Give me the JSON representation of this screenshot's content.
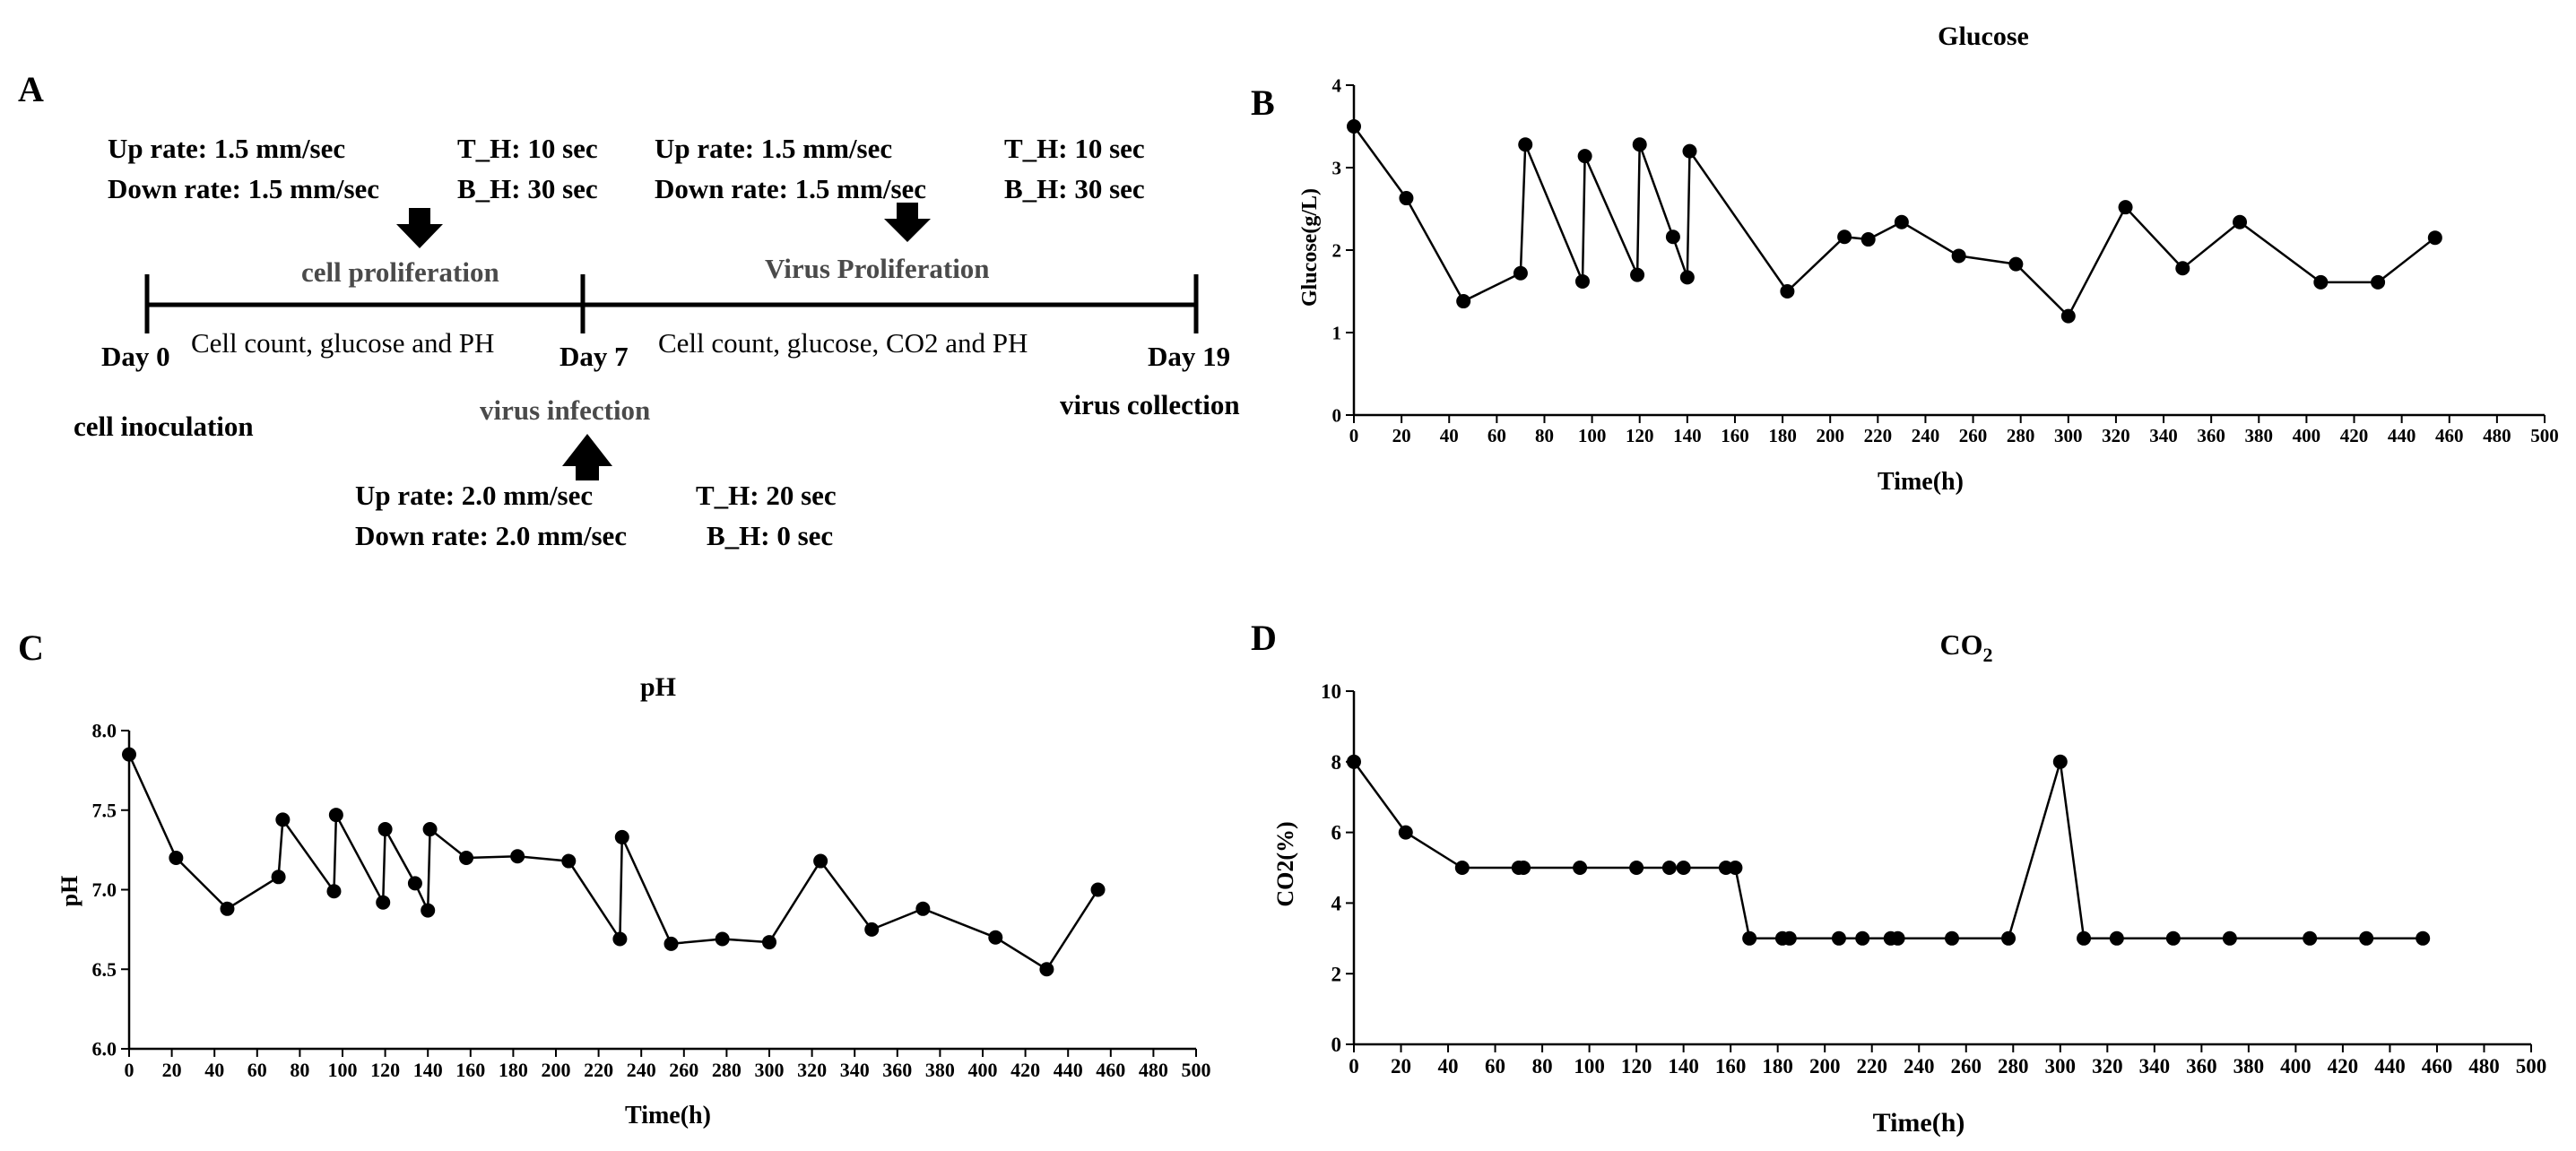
{
  "panel_letters": {
    "a": "A",
    "b": "B",
    "c": "C",
    "d": "D"
  },
  "timeline": {
    "settings_cell": {
      "up": "Up rate: 1.5 mm/sec",
      "down": "Down rate: 1.5 mm/sec",
      "th": "T_H: 10 sec",
      "bh": "B_H: 30 sec"
    },
    "settings_virus": {
      "up": "Up rate: 1.5 mm/sec",
      "down": "Down rate: 1.5 mm/sec",
      "th": "T_H: 10 sec",
      "bh": "B_H: 30 sec"
    },
    "settings_infection": {
      "up": "Up rate: 2.0 mm/sec",
      "down": "Down rate: 2.0 mm/sec",
      "th": "T_H: 20 sec",
      "bh": "B_H: 0 sec"
    },
    "phase_cell": "cell proliferation",
    "phase_virus": "Virus Proliferation",
    "day0": "Day 0",
    "day7": "Day 7",
    "day19": "Day 19",
    "measure_cell": "Cell count, glucose and PH",
    "measure_virus": "Cell count, glucose, CO2 and PH",
    "event_inoculation": "cell inoculation",
    "event_infection": "virus infection",
    "event_collection": "virus collection"
  },
  "chart_data": [
    {
      "id": "glucose",
      "type": "line",
      "title": "Glucose",
      "xlabel": "Time(h)",
      "ylabel": "Glucose(g/L)",
      "xlim": [
        0,
        500
      ],
      "ylim": [
        0,
        4
      ],
      "xticks": [
        0,
        20,
        40,
        60,
        80,
        100,
        120,
        140,
        160,
        180,
        200,
        220,
        240,
        260,
        280,
        300,
        320,
        340,
        360,
        380,
        400,
        420,
        440,
        460,
        480,
        500
      ],
      "yticks": [
        0,
        1,
        2,
        3,
        4
      ],
      "ytick_labels": [
        "0",
        "1",
        "2",
        "3",
        "4"
      ],
      "x": [
        0,
        22,
        46,
        70,
        72,
        96,
        97,
        119,
        120,
        134,
        140,
        141,
        182,
        206,
        216,
        230,
        254,
        278,
        300,
        324,
        348,
        372,
        406,
        430,
        454
      ],
      "y": [
        3.5,
        2.63,
        1.38,
        1.72,
        3.28,
        1.62,
        3.14,
        1.7,
        3.28,
        2.16,
        1.67,
        3.2,
        1.5,
        2.16,
        2.13,
        2.34,
        1.93,
        1.83,
        1.2,
        2.52,
        1.78,
        2.34,
        1.61,
        1.61,
        2.15
      ]
    },
    {
      "id": "ph",
      "type": "line",
      "title": "pH",
      "xlabel": "Time(h)",
      "ylabel": "pH",
      "xlim": [
        0,
        500
      ],
      "ylim": [
        6.0,
        8.0
      ],
      "xticks": [
        0,
        20,
        40,
        60,
        80,
        100,
        120,
        140,
        160,
        180,
        200,
        220,
        240,
        260,
        280,
        300,
        320,
        340,
        360,
        380,
        400,
        420,
        440,
        460,
        480,
        500
      ],
      "yticks": [
        6.0,
        6.5,
        7.0,
        7.5,
        8.0
      ],
      "ytick_labels": [
        "6.0",
        "6.5",
        "7.0",
        "7.5",
        "8.0"
      ],
      "x": [
        0,
        22,
        46,
        70,
        72,
        96,
        97,
        119,
        120,
        134,
        140,
        141,
        158,
        182,
        206,
        230,
        231,
        254,
        278,
        300,
        324,
        348,
        372,
        406,
        430,
        454
      ],
      "y": [
        7.85,
        7.2,
        6.88,
        7.08,
        7.44,
        6.99,
        7.47,
        6.92,
        7.38,
        7.04,
        6.87,
        7.38,
        7.2,
        7.21,
        7.18,
        6.69,
        7.33,
        6.66,
        6.69,
        6.67,
        7.18,
        6.75,
        6.88,
        6.7,
        6.5,
        7.0
      ]
    },
    {
      "id": "co2",
      "type": "line",
      "title": "CO2",
      "xlabel": "Time(h)",
      "ylabel": "CO2(%)",
      "xlim": [
        0,
        500
      ],
      "ylim": [
        0,
        10
      ],
      "xticks": [
        0,
        20,
        40,
        60,
        80,
        100,
        120,
        140,
        160,
        180,
        200,
        220,
        240,
        260,
        280,
        300,
        320,
        340,
        360,
        380,
        400,
        420,
        440,
        460,
        480,
        500
      ],
      "yticks": [
        0,
        2,
        4,
        6,
        8,
        10
      ],
      "ytick_labels": [
        "0",
        "2",
        "4",
        "6",
        "8",
        "10"
      ],
      "x": [
        0,
        22,
        46,
        70,
        72,
        96,
        120,
        134,
        140,
        158,
        162,
        168,
        182,
        185,
        206,
        216,
        228,
        231,
        254,
        278,
        300,
        310,
        324,
        348,
        372,
        406,
        430,
        454
      ],
      "y": [
        8,
        6,
        5,
        5,
        5,
        5,
        5,
        5,
        5,
        5,
        5,
        3,
        3,
        3,
        3,
        3,
        3,
        3,
        3,
        3,
        8,
        3,
        3,
        3,
        3,
        3,
        3,
        3
      ]
    }
  ]
}
